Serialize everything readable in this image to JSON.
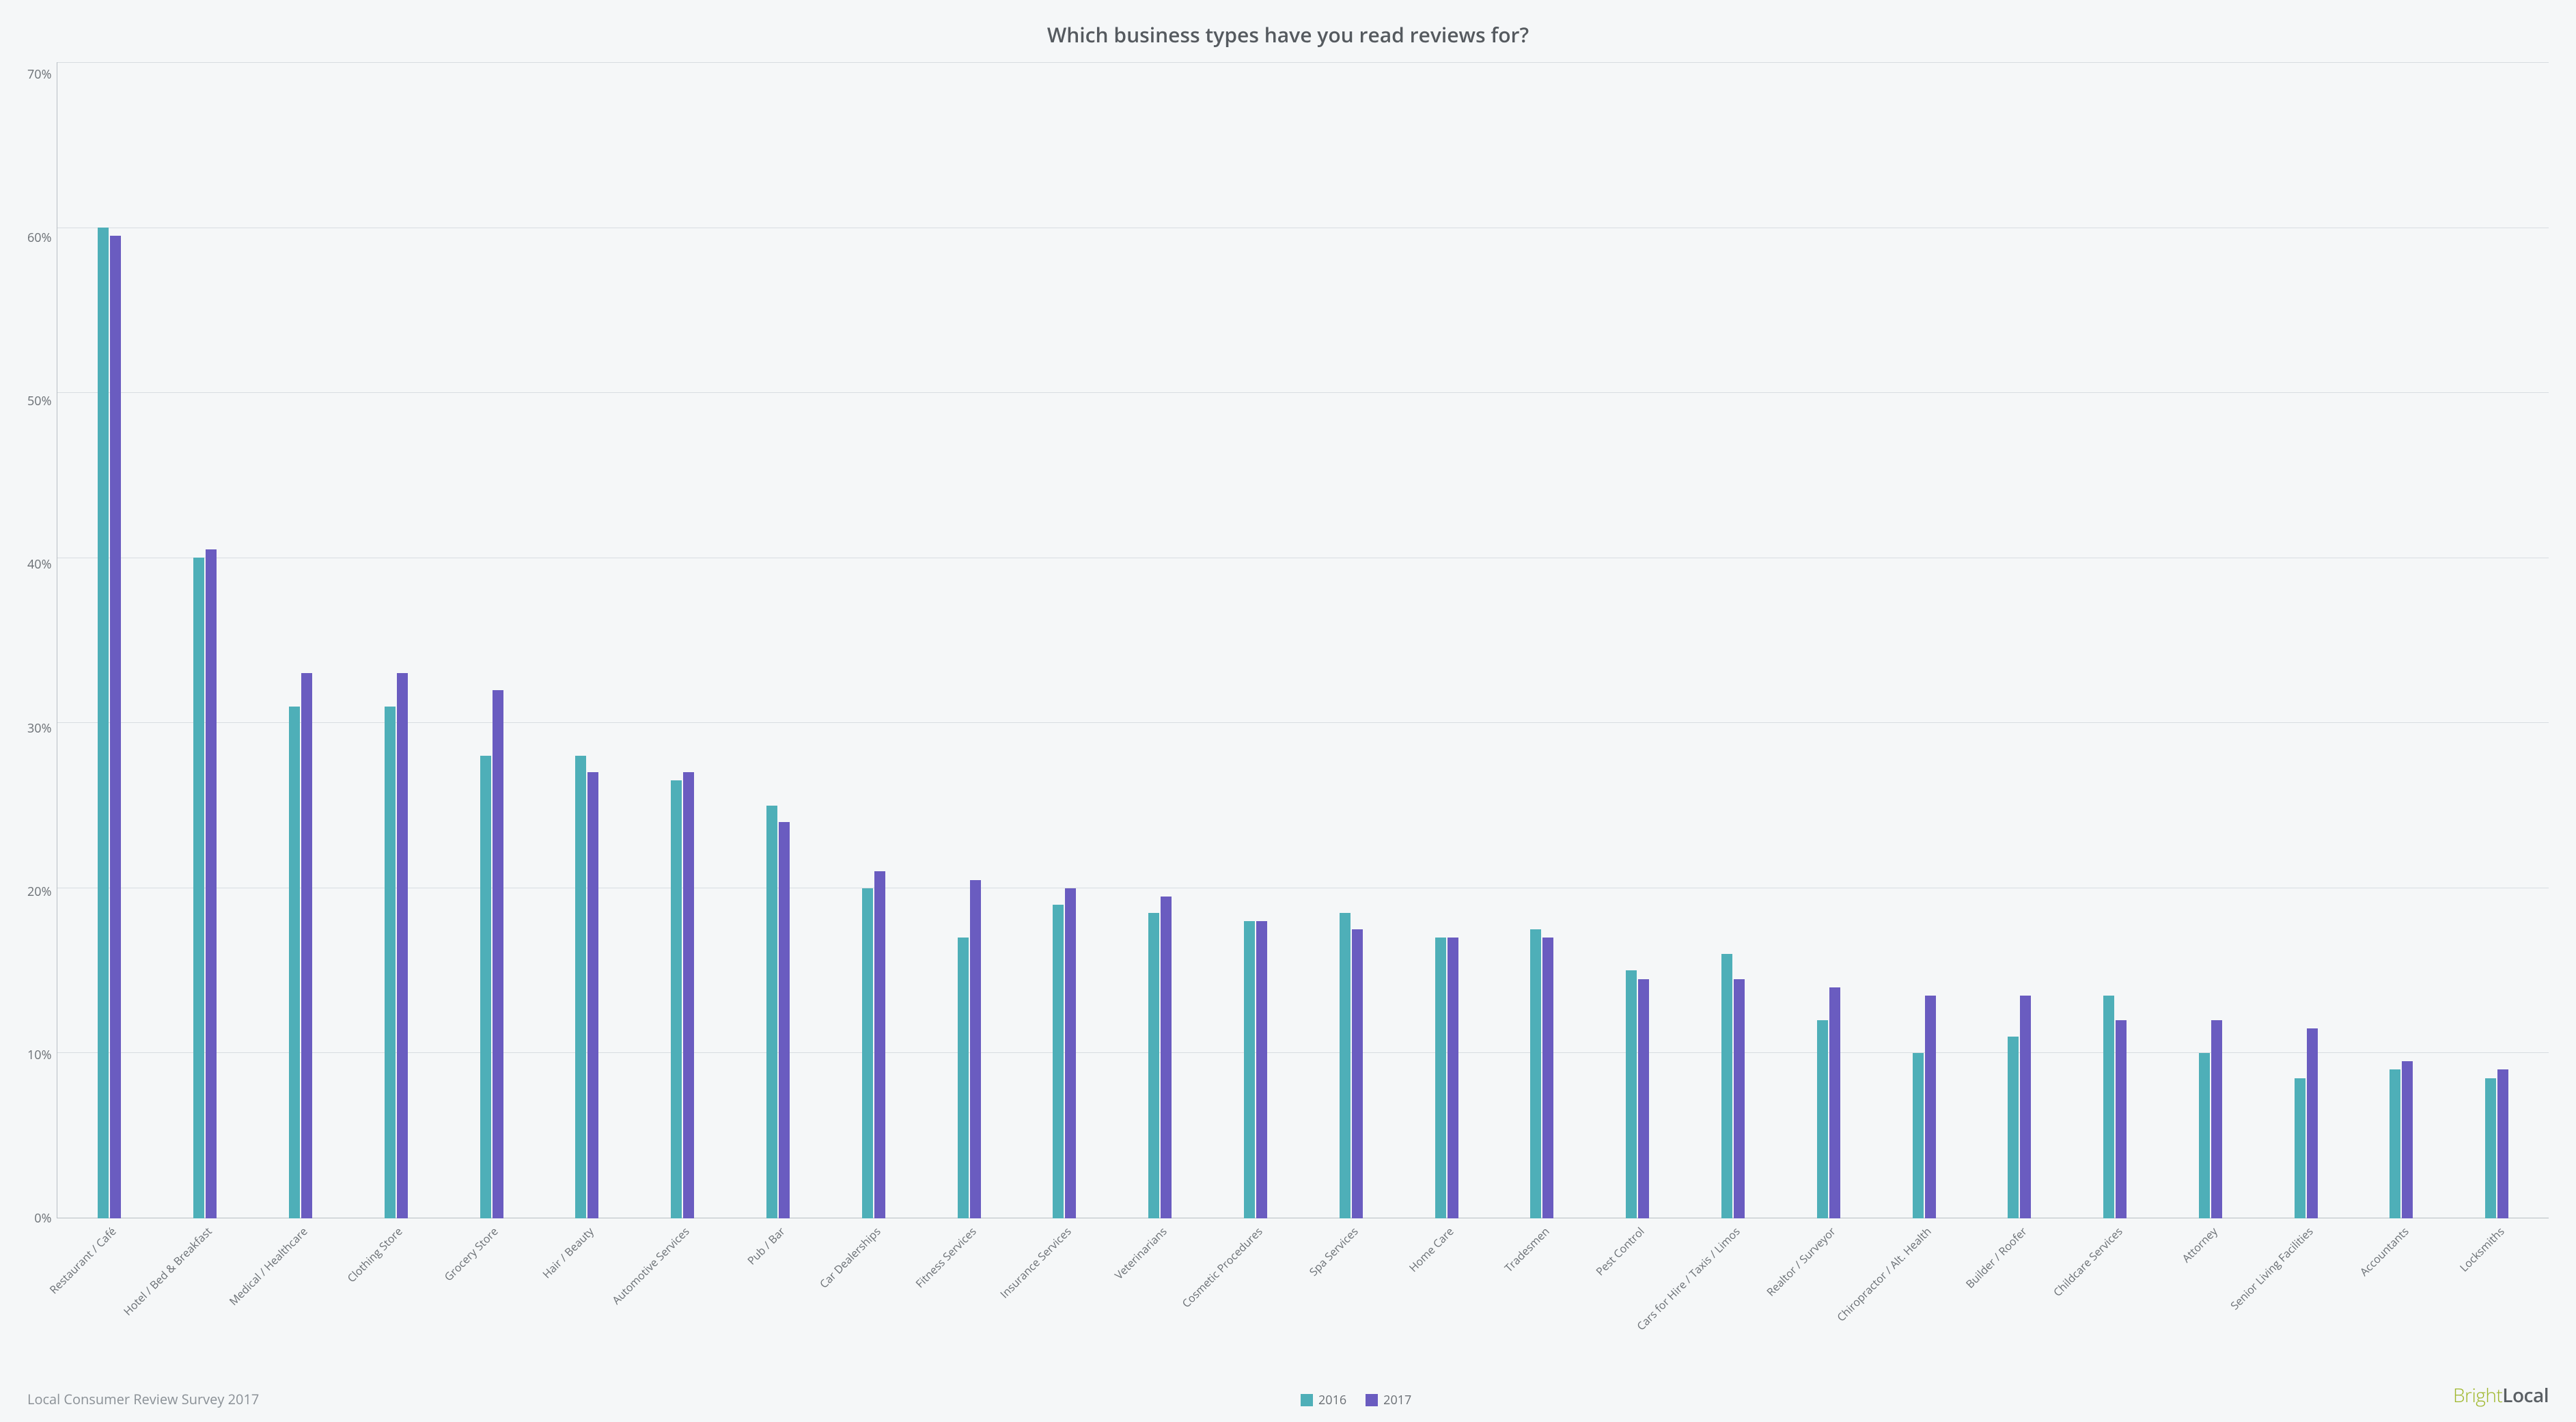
{
  "chart": {
    "type": "bar",
    "title": "Which business types have you read reviews for?",
    "title_fontsize": 30,
    "title_color": "#555a5f",
    "background_color": "#f5f7f8",
    "text_color": "#6a6f74",
    "axis_line_color": "#b8bec3",
    "grid_color": "#d8dde1",
    "label_fontsize": 16,
    "tick_fontsize": 18,
    "ylim_max": 70,
    "ytick_step": 10,
    "y_suffix": "%",
    "x_label_rotation_deg": -45,
    "categories": [
      "Restaurant / Café",
      "Hotel / Bed & Breakfast",
      "Medical / Healthcare",
      "Clothing Store",
      "Grocery Store",
      "Hair / Beauty",
      "Automotive Services",
      "Pub / Bar",
      "Car Dealerships",
      "Fitness Services",
      "Insurance Services",
      "Veterinarians",
      "Cosmetic Procedures",
      "Spa Services",
      "Home Care",
      "Tradesmen",
      "Pest Control",
      "Cars for Hire / Taxis / Limos",
      "Realtor / Surveyor",
      "Chiropractor / Alt. Health",
      "Builder / Roofer",
      "Childcare Services",
      "Attorney",
      "Senior Living Facilities",
      "Accountants",
      "Locksmiths"
    ],
    "series": [
      {
        "name": "2016",
        "color": "#4eafb8",
        "values": [
          60,
          40,
          31,
          31,
          28,
          28,
          26.5,
          25,
          20,
          17,
          19,
          18.5,
          18,
          18.5,
          17,
          17.5,
          15,
          16,
          12,
          10,
          11,
          13.5,
          10,
          8.5,
          9,
          8.5
        ]
      },
      {
        "name": "2017",
        "color": "#6a5cc0",
        "values": [
          59.5,
          40.5,
          33,
          33,
          32,
          27,
          27,
          24,
          21,
          20.5,
          20,
          19.5,
          18,
          17.5,
          17,
          17,
          14.5,
          14.5,
          14,
          13.5,
          13.5,
          12,
          12,
          11.5,
          9.5,
          9
        ]
      }
    ]
  },
  "footer": {
    "source_text": "Local Consumer Review Survey 2017",
    "source_color": "#8a9096"
  },
  "brand": {
    "part1": "Bright",
    "part1_color": "#9fb72c",
    "part2": "Local",
    "part2_color": "#5a5f64"
  }
}
